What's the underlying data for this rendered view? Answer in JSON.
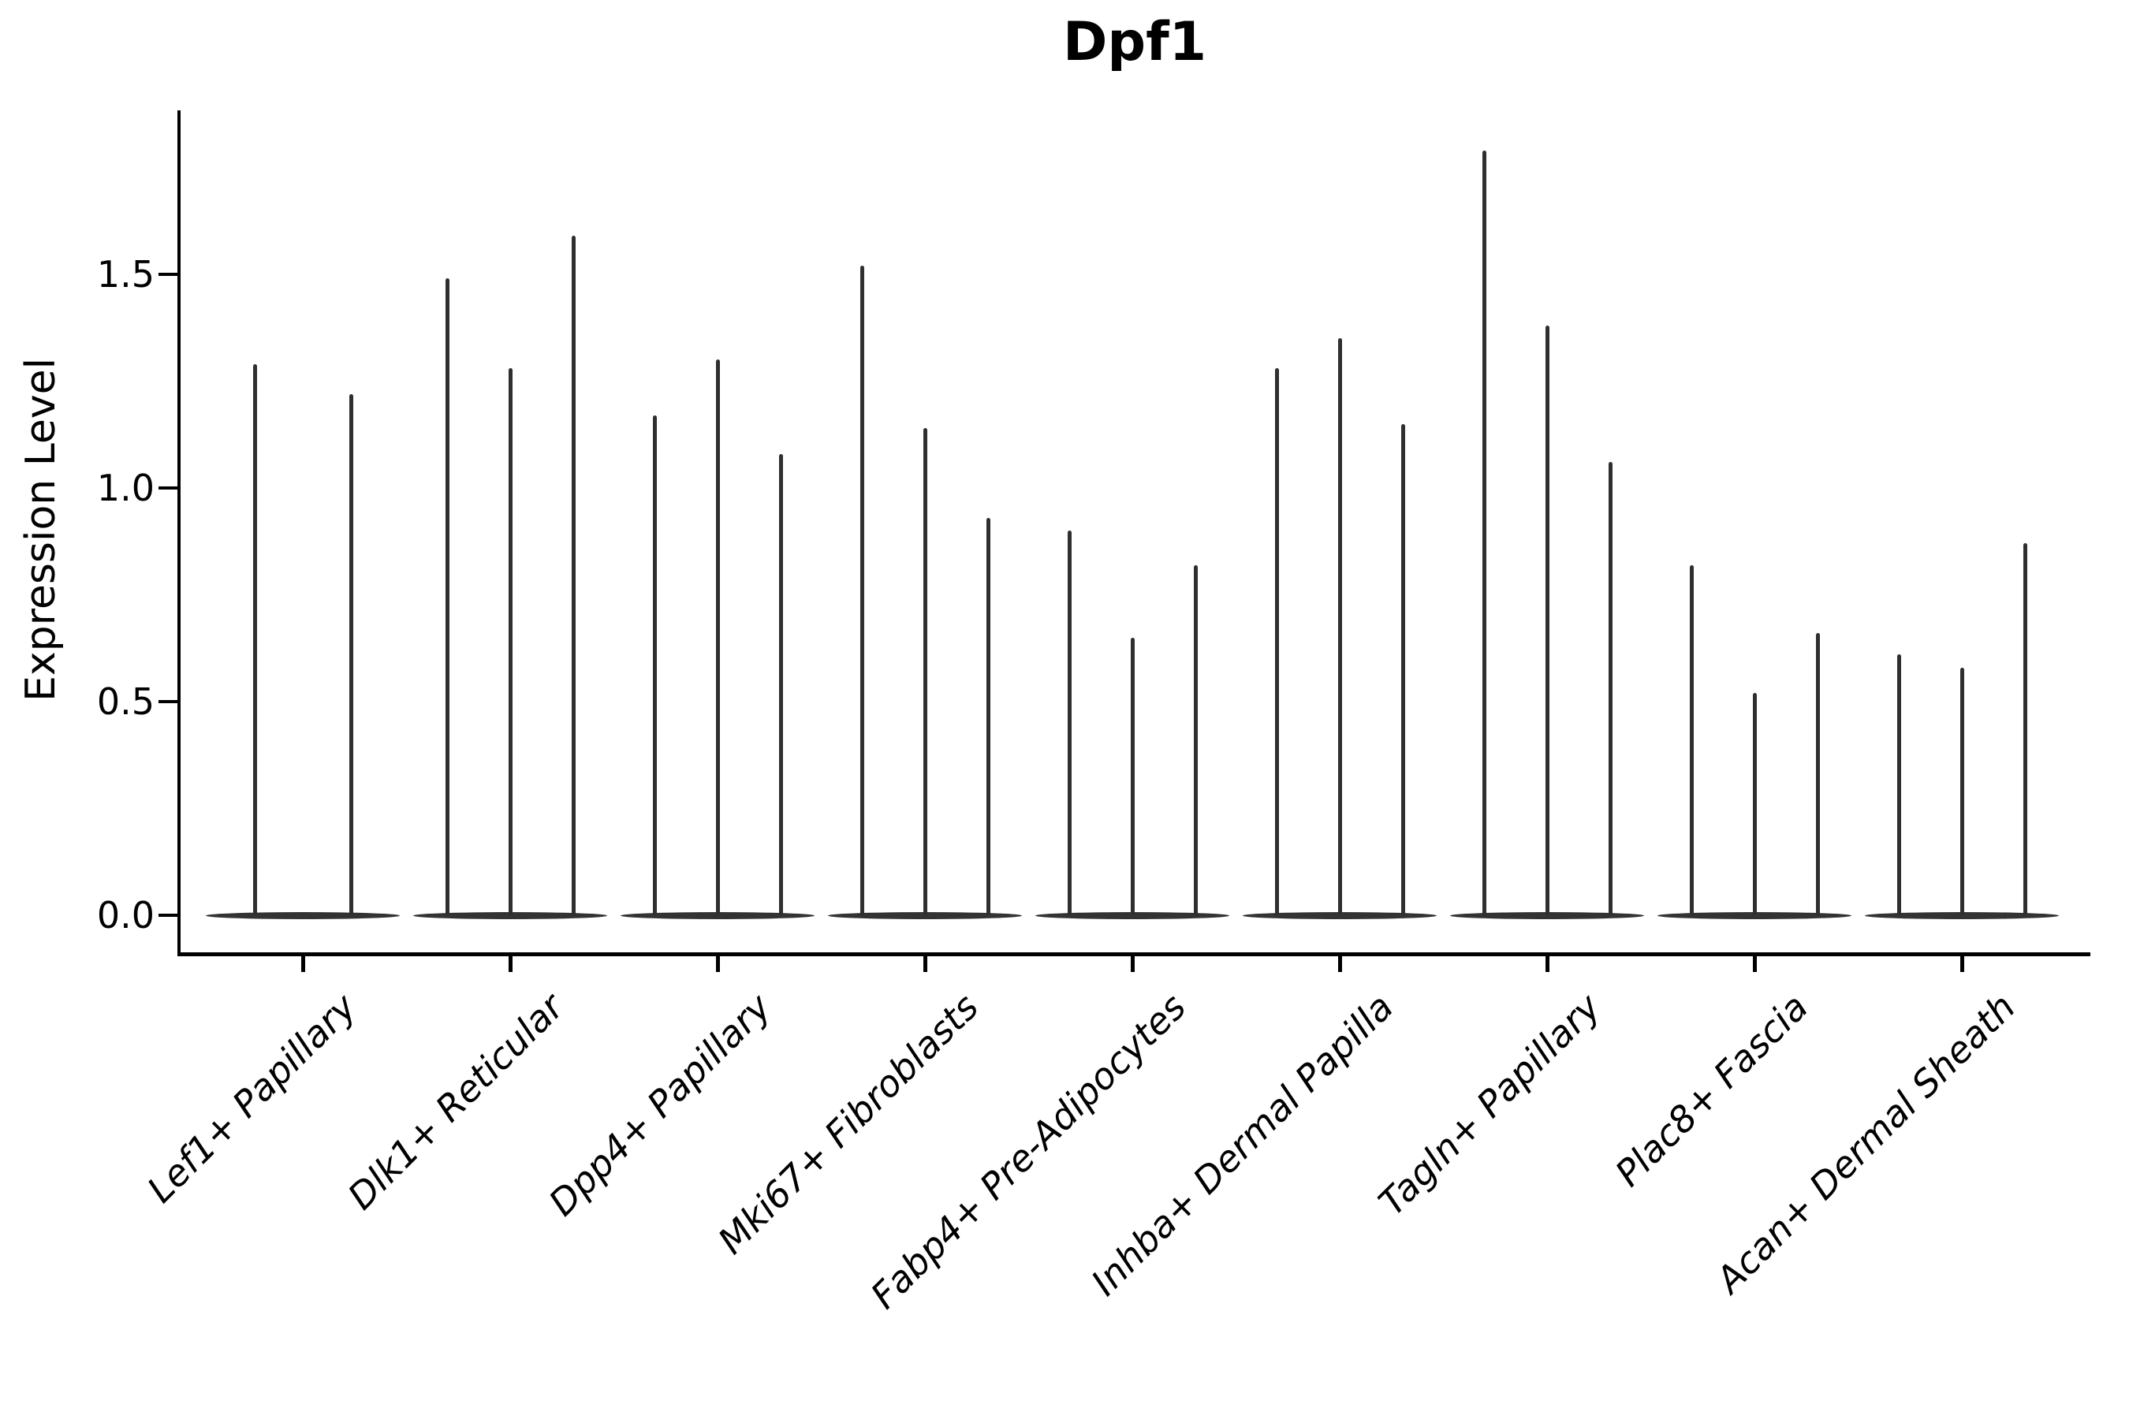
{
  "chart_data": {
    "type": "violin",
    "title": "Dpf1",
    "ylabel": "Expression Level",
    "xlabel": "",
    "grid": false,
    "legend_position": "none",
    "ylim": [
      -0.09,
      1.88
    ],
    "yticks": [
      {
        "label": "0.0",
        "value": 0.0
      },
      {
        "label": "0.5",
        "value": 0.5
      },
      {
        "label": "1.0",
        "value": 1.0
      },
      {
        "label": "1.5",
        "value": 1.5
      }
    ],
    "categories": [
      "Lef1+ Papillary",
      "Dlk1+ Reticular",
      "Dpp4+ Papillary",
      "Mki67+ Fibroblasts",
      "Fabp4+ Pre-Adipocytes",
      "Inhba+ Dermal Papilla",
      "Tagln+ Papillary",
      "Plac8+ Fascia",
      "Acan+ Dermal Sheath"
    ],
    "groups": [
      {
        "category": "Lef1+ Papillary",
        "violin_peaks": [
          1.29,
          1.22
        ]
      },
      {
        "category": "Dlk1+ Reticular",
        "violin_peaks": [
          1.49,
          1.28,
          1.59
        ]
      },
      {
        "category": "Dpp4+ Papillary",
        "violin_peaks": [
          1.17,
          1.3,
          1.08
        ]
      },
      {
        "category": "Mki67+ Fibroblasts",
        "violin_peaks": [
          1.52,
          1.14,
          0.93
        ]
      },
      {
        "category": "Fabp4+ Pre-Adipocytes",
        "violin_peaks": [
          0.9,
          0.65,
          0.82
        ]
      },
      {
        "category": "Inhba+ Dermal Papilla",
        "violin_peaks": [
          1.28,
          1.35,
          1.15
        ]
      },
      {
        "category": "Tagln+ Papillary",
        "violin_peaks": [
          1.79,
          1.38,
          1.06
        ]
      },
      {
        "category": "Plac8+ Fascia",
        "violin_peaks": [
          0.82,
          0.52,
          0.66
        ]
      },
      {
        "category": "Acan+ Dermal Sheath",
        "violin_peaks": [
          0.61,
          0.58,
          0.87
        ]
      }
    ],
    "colors": {
      "violin": "#2f2f2f",
      "violin_base": "#333333",
      "axis": "#000000",
      "text": "#000000",
      "background": "#ffffff"
    }
  }
}
